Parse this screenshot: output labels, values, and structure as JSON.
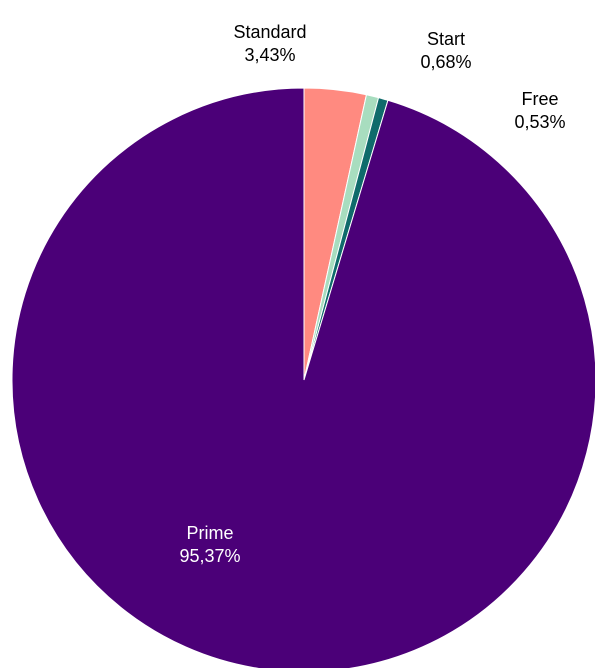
{
  "chart_data": {
    "type": "pie",
    "title": "",
    "categories": [
      "Standard",
      "Start",
      "Free",
      "Prime"
    ],
    "values": [
      3.43,
      0.68,
      0.53,
      95.37
    ],
    "value_labels": [
      "3,43%",
      "0,68%",
      "0,53%",
      "95,37%"
    ],
    "colors": [
      "#FF8A80",
      "#A8DDBF",
      "#0F6B6B",
      "#4B0078"
    ],
    "label_colors": [
      "#000000",
      "#000000",
      "#000000",
      "#ffffff"
    ],
    "start_angle_deg": 0,
    "direction": "clockwise",
    "legend": "none"
  }
}
